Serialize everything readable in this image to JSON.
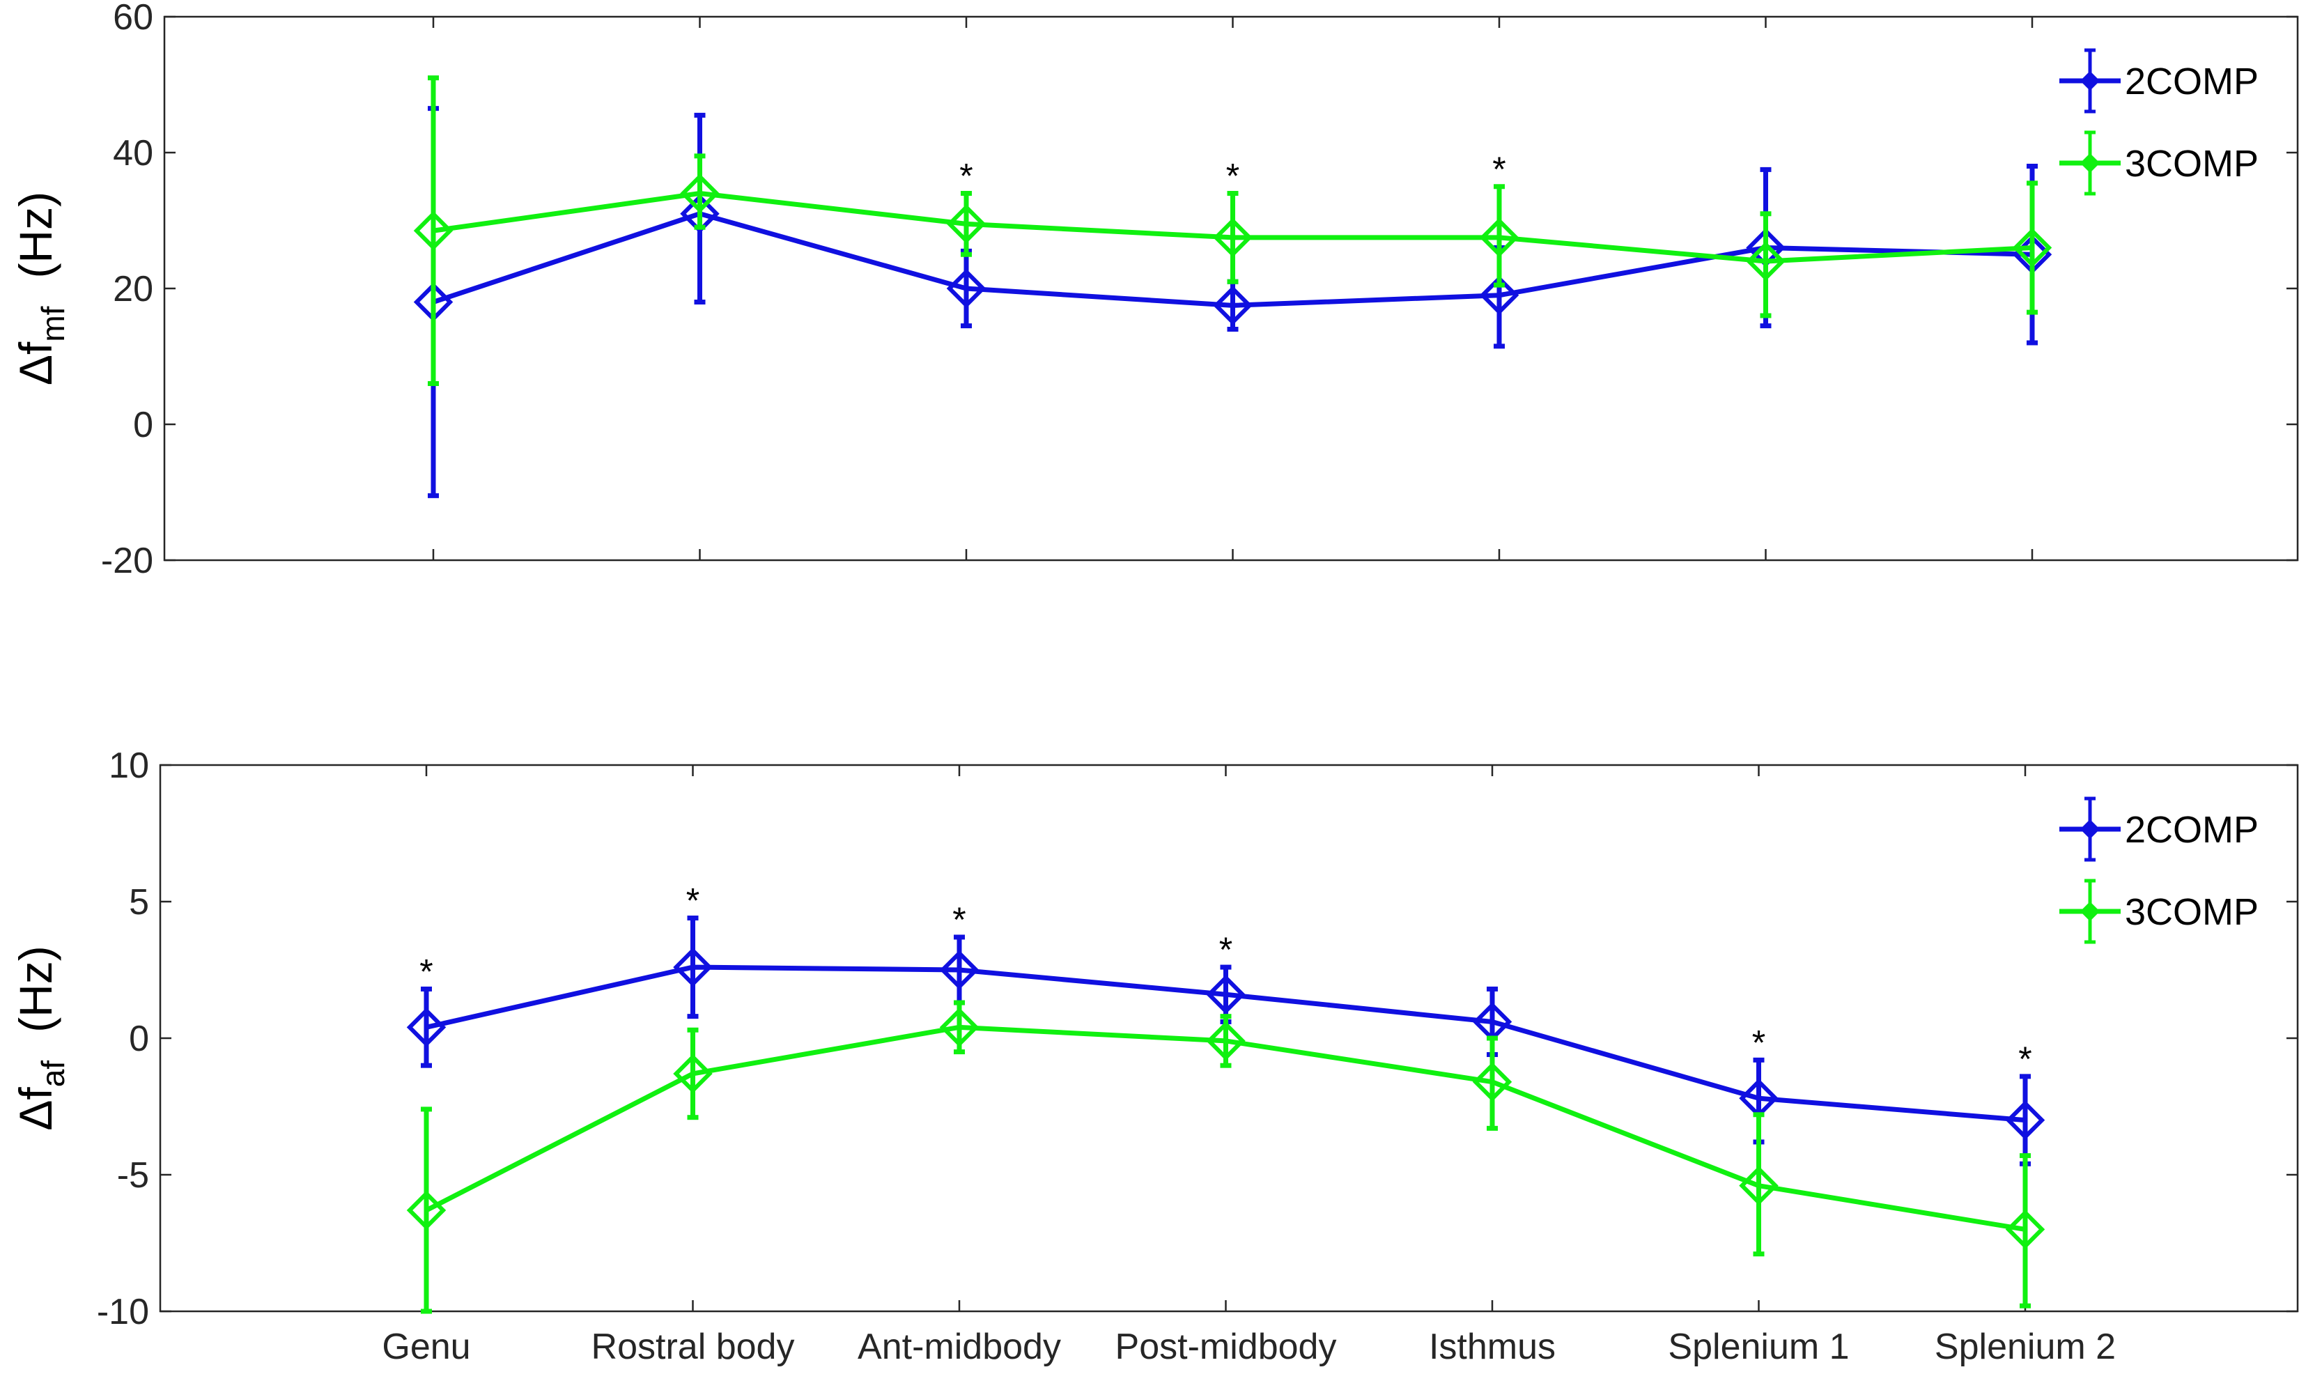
{
  "chart_data": [
    {
      "type": "line",
      "panel": "top",
      "ylabel_main": "Δf",
      "ylabel_sub": "mf",
      "ylabel_unit": "(Hz)",
      "categories": [
        "Genu",
        "Rostral body",
        "Ant-midbody",
        "Post-midbody",
        "Isthmus",
        "Splenium 1",
        "Splenium 2"
      ],
      "show_category_labels": false,
      "ylim": [
        -20,
        60
      ],
      "yticks": [
        -20,
        0,
        20,
        40,
        60
      ],
      "series": [
        {
          "name": "2COMP",
          "color": "#1010e0",
          "values": [
            18,
            31,
            20,
            17.5,
            19,
            26,
            25
          ],
          "err_low": [
            -10.5,
            18,
            14.5,
            14,
            11.5,
            14.5,
            12
          ],
          "err_high": [
            46.5,
            45.5,
            25.5,
            21,
            26,
            37.5,
            38
          ]
        },
        {
          "name": "3COMP",
          "color": "#10f010",
          "values": [
            28.5,
            34,
            29.5,
            27.5,
            27.5,
            24,
            26
          ],
          "err_low": [
            6,
            29,
            25,
            21,
            20.5,
            16,
            16.5
          ],
          "err_high": [
            51,
            39.5,
            34,
            34,
            35,
            31,
            35.5
          ]
        }
      ],
      "significance": [
        "",
        "",
        "*",
        "*",
        "*",
        "",
        ""
      ],
      "sig_symbol": "*",
      "legend": [
        "2COMP",
        "3COMP"
      ],
      "legend_position": "top-right"
    },
    {
      "type": "line",
      "panel": "bottom",
      "ylabel_main": "Δf",
      "ylabel_sub": "af",
      "ylabel_unit": "(Hz)",
      "categories": [
        "Genu",
        "Rostral body",
        "Ant-midbody",
        "Post-midbody",
        "Isthmus",
        "Splenium 1",
        "Splenium 2"
      ],
      "show_category_labels": true,
      "ylim": [
        -10,
        10
      ],
      "yticks": [
        -10,
        -5,
        0,
        5,
        10
      ],
      "series": [
        {
          "name": "2COMP",
          "color": "#1010e0",
          "values": [
            0.4,
            2.6,
            2.5,
            1.6,
            0.6,
            -2.2,
            -3.0
          ],
          "err_low": [
            -1.0,
            0.8,
            1.3,
            0.6,
            -0.6,
            -3.8,
            -4.6
          ],
          "err_high": [
            1.8,
            4.4,
            3.7,
            2.6,
            1.8,
            -0.8,
            -1.4
          ]
        },
        {
          "name": "3COMP",
          "color": "#10f010",
          "values": [
            -6.3,
            -1.3,
            0.4,
            -0.1,
            -1.6,
            -5.4,
            -7.0
          ],
          "err_low": [
            -10,
            -2.9,
            -0.5,
            -1.0,
            -3.3,
            -7.9,
            -9.8
          ],
          "err_high": [
            -2.6,
            0.3,
            1.3,
            0.8,
            0.0,
            -2.8,
            -4.3
          ]
        }
      ],
      "significance": [
        "*",
        "*",
        "*",
        "*",
        "",
        "*",
        "*"
      ],
      "sig_symbol": "*",
      "legend": [
        "2COMP",
        "3COMP"
      ],
      "legend_position": "top-right"
    }
  ]
}
